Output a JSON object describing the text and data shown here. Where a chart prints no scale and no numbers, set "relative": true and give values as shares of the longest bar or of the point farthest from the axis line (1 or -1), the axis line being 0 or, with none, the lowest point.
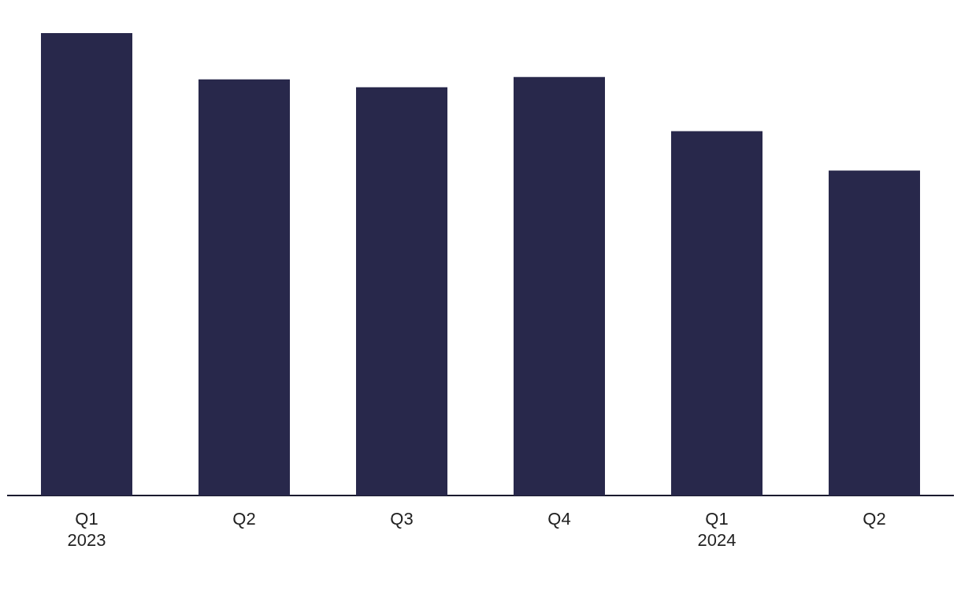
{
  "chart_data": {
    "type": "bar",
    "relative": true,
    "categories": [
      "Q1\n2023",
      "Q2",
      "Q3",
      "Q4",
      "Q1\n2024",
      "Q2"
    ],
    "values": [
      1,
      0.9,
      0.883,
      0.905,
      0.788,
      0.703
    ],
    "color": "#28284b",
    "legend": false
  }
}
